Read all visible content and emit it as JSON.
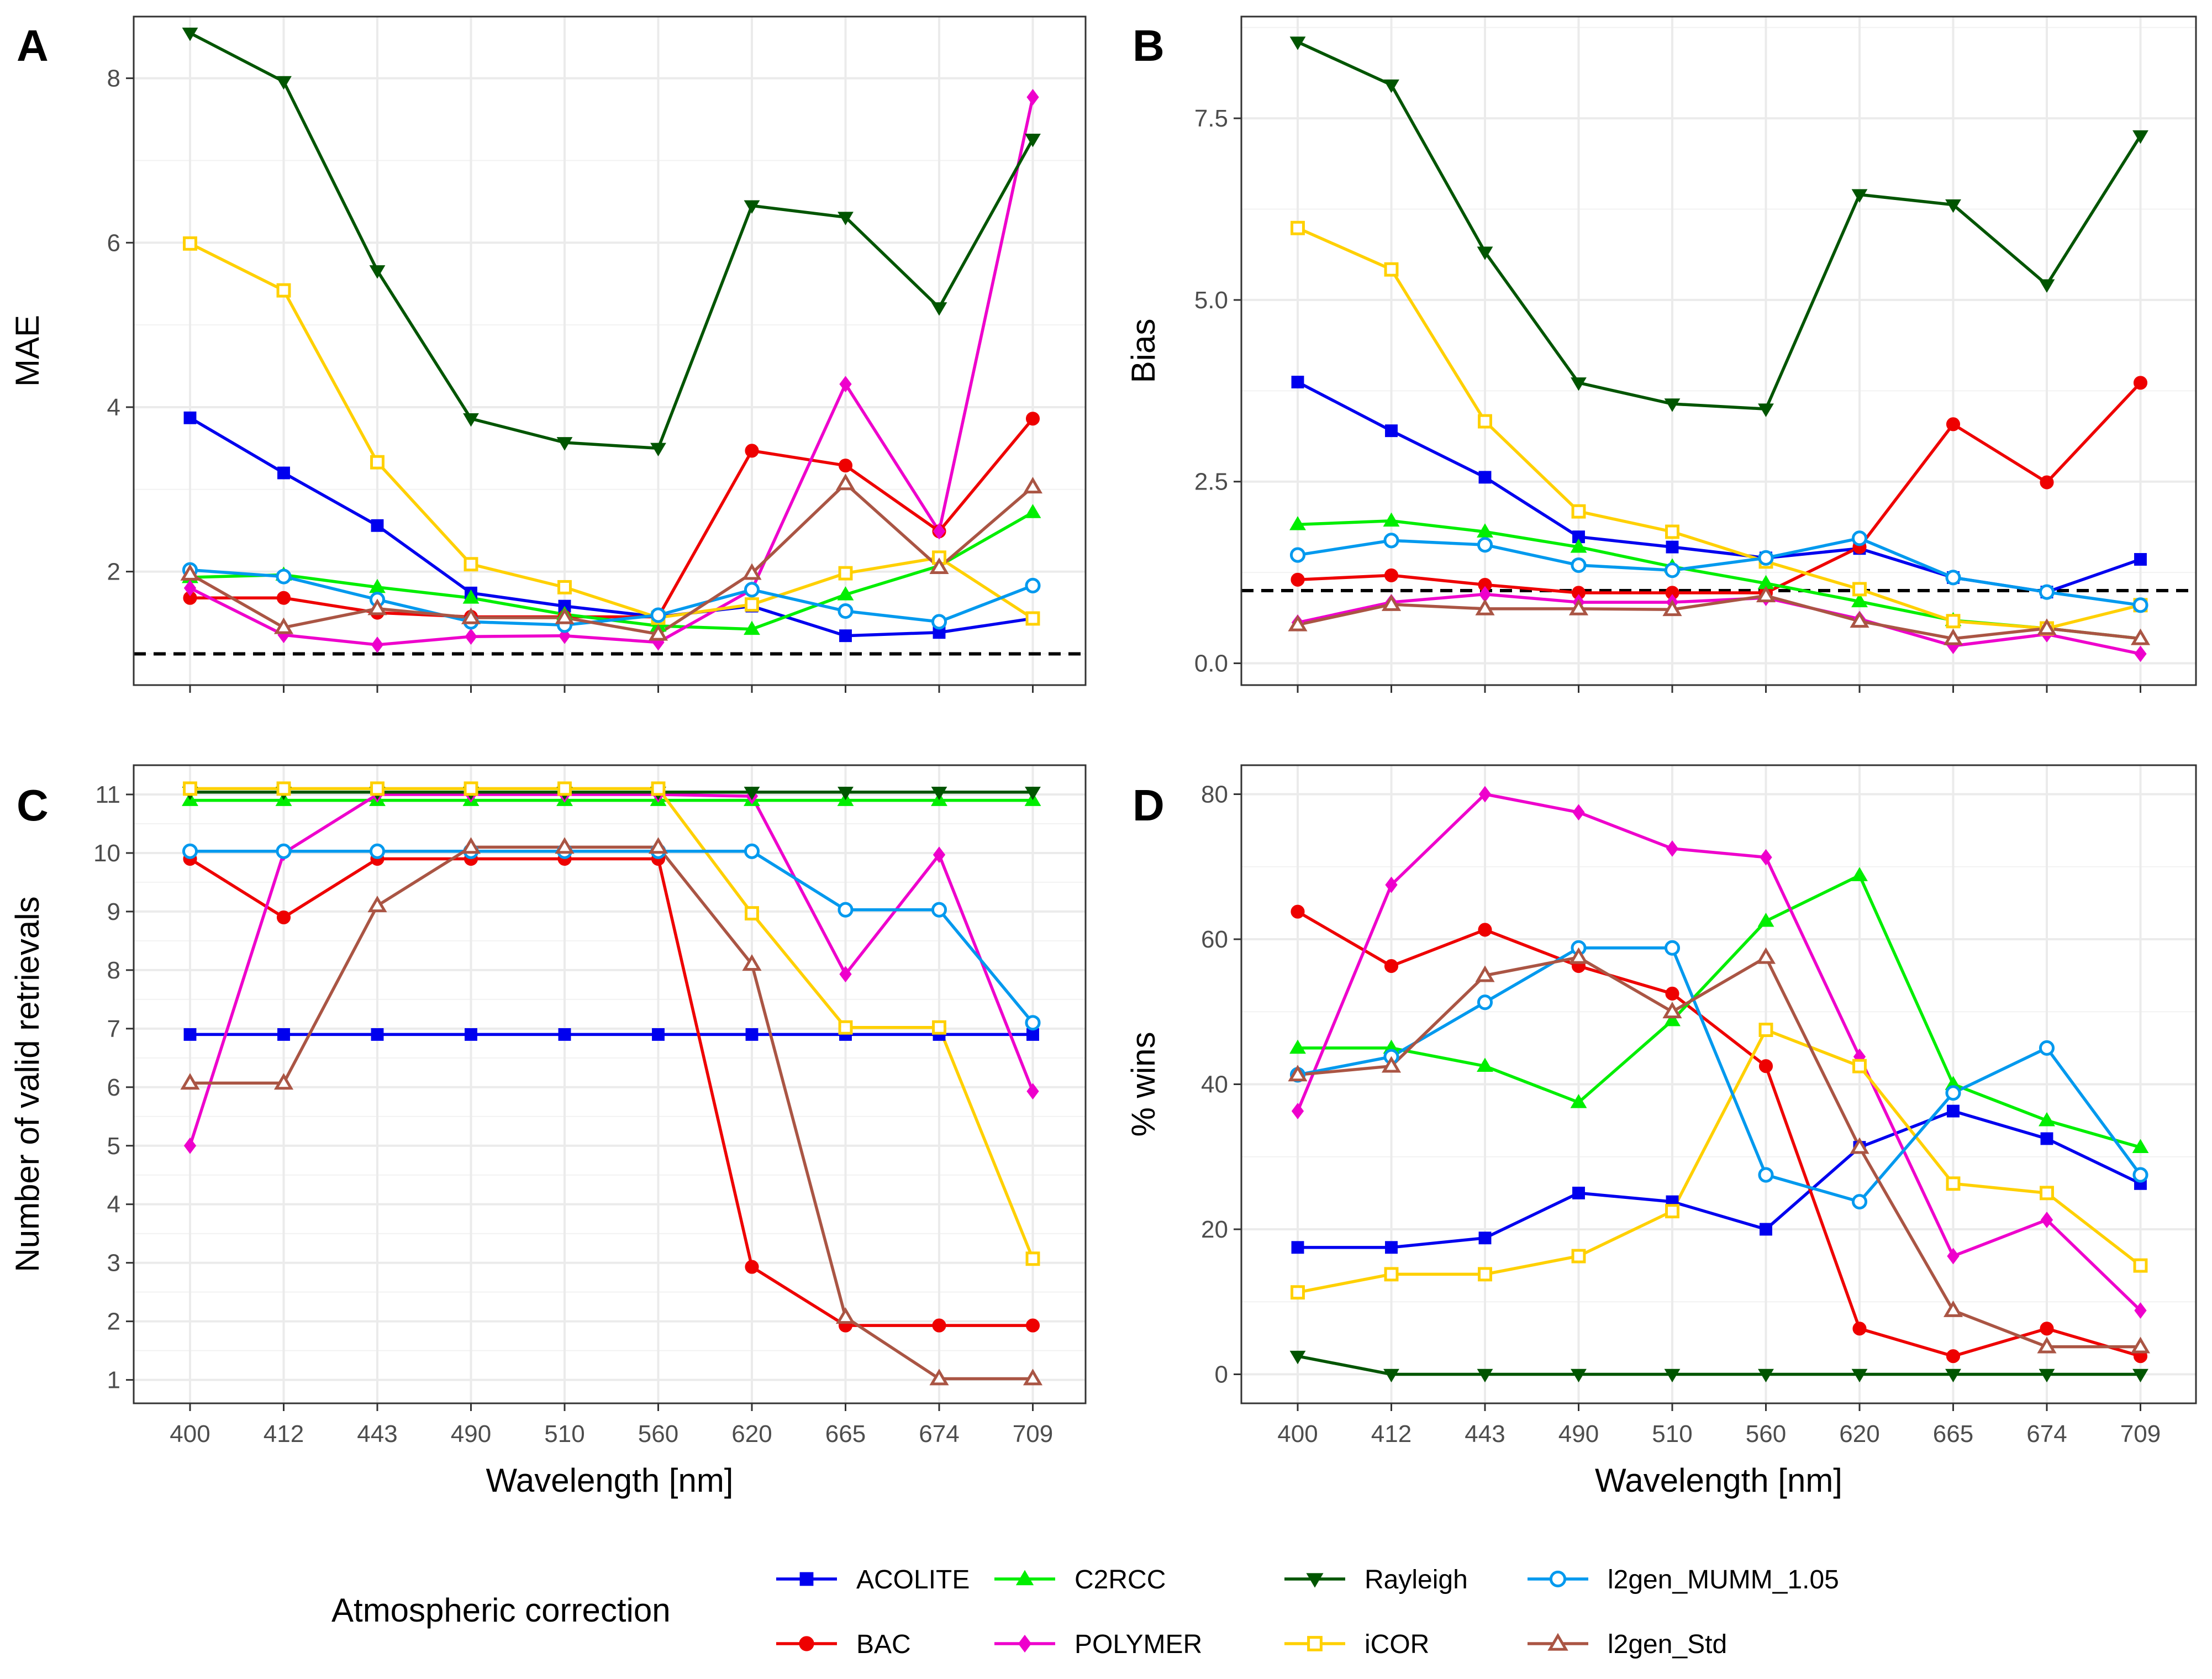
{
  "legend": {
    "title": "Atmospheric correction",
    "entries": [
      {
        "name": "ACOLITE",
        "color": "#0000ee",
        "shape": "square-filled"
      },
      {
        "name": "BAC",
        "color": "#ee0000",
        "shape": "circle-filled"
      },
      {
        "name": "C2RCC",
        "color": "#00ee00",
        "shape": "triangle-filled"
      },
      {
        "name": "POLYMER",
        "color": "#ee00cc",
        "shape": "diamond-filled"
      },
      {
        "name": "Rayleigh",
        "color": "#005500",
        "shape": "triangle-down-filled"
      },
      {
        "name": "iCOR",
        "color": "#ffd000",
        "shape": "square-open"
      },
      {
        "name": "l2gen_MUMM_1.05",
        "color": "#0099ee",
        "shape": "circle-open"
      },
      {
        "name": "l2gen_Std",
        "color": "#aa5544",
        "shape": "triangle-open"
      }
    ]
  },
  "chart_data": [
    {
      "panel": "A",
      "type": "line",
      "categories": [
        "400",
        "412",
        "443",
        "490",
        "510",
        "560",
        "620",
        "665",
        "674",
        "709"
      ],
      "xlabel": "",
      "ylabel": "MAE",
      "ylim": [
        0.62,
        8.75
      ],
      "yticks": [
        2,
        4,
        6,
        8
      ],
      "yticklabels": [
        "2",
        "4",
        "6",
        "8"
      ],
      "reference_line": 1,
      "show_xticklabels": false,
      "series": [
        {
          "name": "ACOLITE",
          "values": [
            3.87,
            3.2,
            2.56,
            1.74,
            1.58,
            1.45,
            1.58,
            1.22,
            1.26,
            1.43
          ]
        },
        {
          "name": "BAC",
          "values": [
            1.68,
            1.68,
            1.5,
            1.45,
            1.45,
            1.45,
            3.47,
            3.29,
            2.49,
            3.86
          ]
        },
        {
          "name": "C2RCC",
          "values": [
            1.93,
            1.96,
            1.81,
            1.68,
            1.48,
            1.34,
            1.3,
            1.72,
            2.07,
            2.72
          ]
        },
        {
          "name": "POLYMER",
          "values": [
            1.8,
            1.23,
            1.11,
            1.21,
            1.22,
            1.14,
            1.78,
            4.28,
            2.49,
            7.77
          ]
        },
        {
          "name": "Rayleigh",
          "values": [
            8.55,
            7.96,
            5.66,
            3.86,
            3.57,
            3.5,
            6.45,
            6.31,
            5.21,
            7.26
          ]
        },
        {
          "name": "iCOR",
          "values": [
            5.99,
            5.42,
            3.33,
            2.09,
            1.81,
            1.44,
            1.6,
            1.98,
            2.17,
            1.43
          ]
        },
        {
          "name": "l2gen_MUMM_1.05",
          "values": [
            2.02,
            1.94,
            1.66,
            1.39,
            1.35,
            1.47,
            1.78,
            1.52,
            1.39,
            1.83
          ]
        },
        {
          "name": "l2gen_Std",
          "values": [
            1.97,
            1.32,
            1.55,
            1.44,
            1.44,
            1.24,
            1.98,
            3.07,
            2.05,
            3.03
          ]
        }
      ]
    },
    {
      "panel": "B",
      "type": "line",
      "categories": [
        "400",
        "412",
        "443",
        "490",
        "510",
        "560",
        "620",
        "665",
        "674",
        "709"
      ],
      "xlabel": "",
      "ylabel": "Bias",
      "ylim": [
        -0.3,
        8.9
      ],
      "yticks": [
        0,
        2.5,
        5,
        7.5
      ],
      "yticklabels": [
        "0.0",
        "2.5",
        "5.0",
        "7.5"
      ],
      "reference_line": 1,
      "show_xticklabels": false,
      "series": [
        {
          "name": "ACOLITE",
          "values": [
            3.87,
            3.2,
            2.56,
            1.74,
            1.6,
            1.45,
            1.58,
            1.18,
            0.98,
            1.43
          ]
        },
        {
          "name": "BAC",
          "values": [
            1.15,
            1.21,
            1.08,
            0.97,
            0.97,
            0.97,
            1.6,
            3.29,
            2.49,
            3.86
          ]
        },
        {
          "name": "C2RCC",
          "values": [
            1.91,
            1.96,
            1.81,
            1.6,
            1.33,
            1.1,
            0.85,
            0.59,
            0.48,
            0.34
          ]
        },
        {
          "name": "POLYMER",
          "values": [
            0.56,
            0.84,
            0.95,
            0.84,
            0.84,
            0.9,
            0.61,
            0.24,
            0.4,
            0.13
          ]
        },
        {
          "name": "Rayleigh",
          "values": [
            8.55,
            7.96,
            5.66,
            3.86,
            3.57,
            3.5,
            6.45,
            6.31,
            5.21,
            7.26
          ]
        },
        {
          "name": "iCOR",
          "values": [
            5.99,
            5.42,
            3.33,
            2.09,
            1.81,
            1.4,
            1.02,
            0.58,
            0.48,
            0.8
          ]
        },
        {
          "name": "l2gen_MUMM_1.05",
          "values": [
            1.49,
            1.69,
            1.63,
            1.35,
            1.28,
            1.45,
            1.72,
            1.18,
            0.98,
            0.8
          ]
        },
        {
          "name": "l2gen_Std",
          "values": [
            0.53,
            0.81,
            0.75,
            0.75,
            0.74,
            0.93,
            0.58,
            0.34,
            0.48,
            0.34
          ]
        }
      ]
    },
    {
      "panel": "C",
      "type": "line",
      "categories": [
        "400",
        "412",
        "443",
        "490",
        "510",
        "560",
        "620",
        "665",
        "674",
        "709"
      ],
      "xlabel": "Wavelength [nm]",
      "ylabel": "Number of valid retrievals",
      "ylim": [
        0.6,
        11.5
      ],
      "yticks": [
        1,
        2,
        3,
        4,
        5,
        6,
        7,
        8,
        9,
        10,
        11
      ],
      "yticklabels": [
        "1",
        "2",
        "3",
        "4",
        "5",
        "6",
        "7",
        "8",
        "9",
        "10",
        "11"
      ],
      "reference_line": null,
      "show_xticklabels": true,
      "series": [
        {
          "name": "ACOLITE",
          "values": [
            6.9,
            6.9,
            6.9,
            6.9,
            6.9,
            6.9,
            6.9,
            6.9,
            6.9,
            6.9
          ]
        },
        {
          "name": "BAC",
          "values": [
            9.9,
            8.9,
            9.9,
            9.9,
            9.9,
            9.9,
            2.93,
            1.93,
            1.93,
            1.93
          ]
        },
        {
          "name": "C2RCC",
          "values": [
            10.9,
            10.9,
            10.9,
            10.9,
            10.9,
            10.9,
            10.9,
            10.9,
            10.9,
            10.9
          ]
        },
        {
          "name": "POLYMER",
          "values": [
            5,
            10,
            11,
            11,
            11,
            11,
            10.97,
            7.93,
            9.97,
            5.93
          ]
        },
        {
          "name": "Rayleigh",
          "values": [
            11.04,
            11.04,
            11.04,
            11.04,
            11.04,
            11.04,
            11.04,
            11.04,
            11.04,
            11.04
          ]
        },
        {
          "name": "iCOR",
          "values": [
            11.1,
            11.1,
            11.1,
            11.1,
            11.1,
            11.1,
            8.97,
            7.02,
            7.02,
            3.07
          ]
        },
        {
          "name": "l2gen_MUMM_1.05",
          "values": [
            10.03,
            10.03,
            10.03,
            10.03,
            10.03,
            10.03,
            10.03,
            9.03,
            9.03,
            7.1
          ]
        },
        {
          "name": "l2gen_Std",
          "values": [
            6.07,
            6.07,
            9.1,
            10.1,
            10.1,
            10.1,
            8.1,
            2.07,
            1.02,
            1.02
          ]
        }
      ]
    },
    {
      "panel": "D",
      "type": "line",
      "categories": [
        "400",
        "412",
        "443",
        "490",
        "510",
        "560",
        "620",
        "665",
        "674",
        "709"
      ],
      "xlabel": "Wavelength [nm]",
      "ylabel": "% wins",
      "ylim": [
        -4,
        84
      ],
      "yticks": [
        0,
        20,
        40,
        60,
        80
      ],
      "yticklabels": [
        "0",
        "20",
        "40",
        "60",
        "80"
      ],
      "reference_line": null,
      "show_xticklabels": true,
      "series": [
        {
          "name": "ACOLITE",
          "values": [
            17.5,
            17.5,
            18.8,
            25,
            23.8,
            20,
            31.3,
            36.3,
            32.5,
            26.3
          ]
        },
        {
          "name": "BAC",
          "values": [
            63.8,
            56.3,
            61.3,
            56.3,
            52.5,
            42.5,
            6.3,
            2.5,
            6.3,
            2.5
          ]
        },
        {
          "name": "C2RCC",
          "values": [
            45,
            45,
            42.5,
            37.5,
            48.8,
            62.5,
            68.8,
            40,
            35,
            31.3
          ]
        },
        {
          "name": "POLYMER",
          "values": [
            36.3,
            67.5,
            80,
            77.5,
            72.5,
            71.3,
            43.8,
            16.3,
            21.3,
            8.8
          ]
        },
        {
          "name": "Rayleigh",
          "values": [
            2.5,
            0,
            0,
            0,
            0,
            0,
            0,
            0,
            0,
            0
          ]
        },
        {
          "name": "iCOR",
          "values": [
            11.3,
            13.8,
            13.8,
            16.3,
            22.5,
            47.5,
            42.5,
            26.3,
            25,
            15
          ]
        },
        {
          "name": "l2gen_MUMM_1.05",
          "values": [
            41.3,
            43.8,
            51.3,
            58.8,
            58.8,
            27.5,
            23.8,
            38.8,
            45,
            27.5
          ]
        },
        {
          "name": "l2gen_Std",
          "values": [
            41.3,
            42.5,
            55,
            57.5,
            50,
            57.5,
            31.3,
            8.8,
            3.8,
            3.8
          ]
        }
      ]
    }
  ]
}
